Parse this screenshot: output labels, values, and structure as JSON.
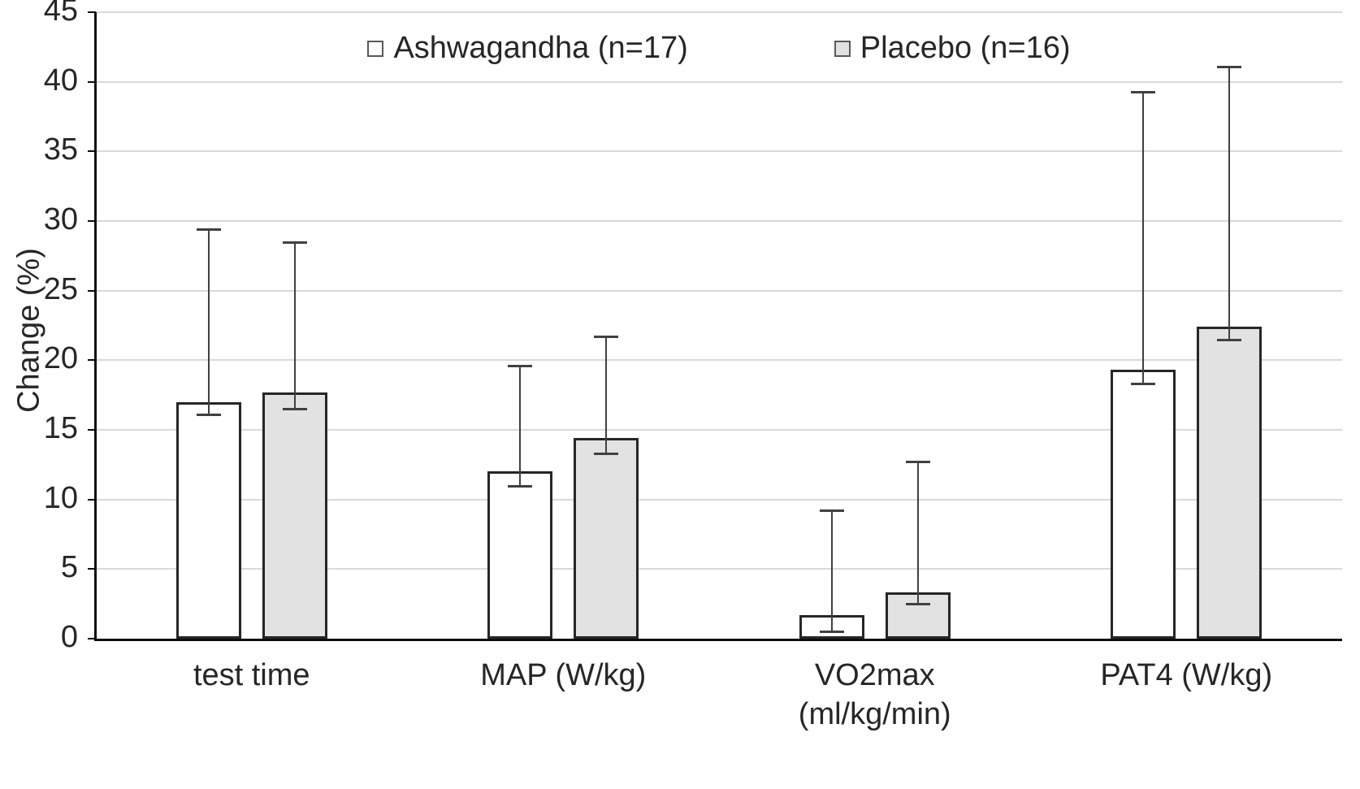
{
  "chart_data": {
    "type": "bar",
    "title": "",
    "xlabel": "",
    "ylabel": "Change (%)",
    "ylim": [
      0,
      45
    ],
    "ytick_step": 5,
    "grid": true,
    "legend_position": "top-center",
    "categories": [
      "test time",
      "MAP (W/kg)",
      "VO2max\n(ml/kg/min)",
      "PAT4 (W/kg)"
    ],
    "series": [
      {
        "name": "Ashwagandha (n=17)",
        "fill": "#ffffff",
        "values": [
          17.0,
          12.0,
          1.7,
          19.3
        ],
        "err_low": [
          16.1,
          11.0,
          0.5,
          18.3
        ],
        "err_high": [
          29.4,
          19.6,
          9.2,
          39.3
        ]
      },
      {
        "name": "Placebo (n=16)",
        "fill": "#e2e2e2",
        "values": [
          17.7,
          14.4,
          3.3,
          22.4
        ],
        "err_low": [
          16.5,
          13.3,
          2.5,
          21.5
        ],
        "err_high": [
          28.5,
          21.7,
          12.7,
          41.1
        ]
      }
    ],
    "colors": {
      "gridline": "#d9d9d9",
      "axis": "#0d0d0d",
      "bar_border": "#262626",
      "error_bar": "#404040"
    }
  }
}
